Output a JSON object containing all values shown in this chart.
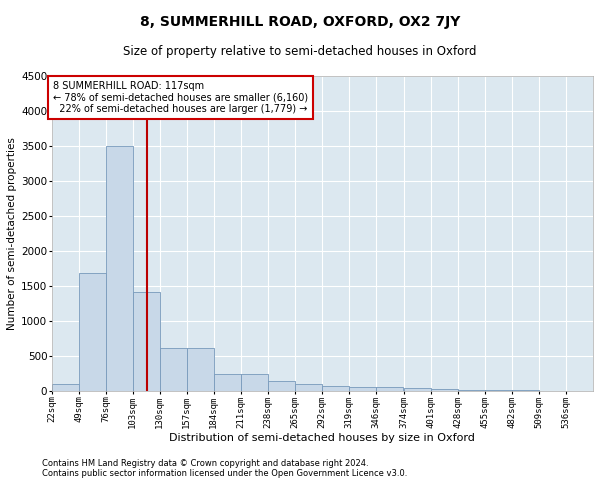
{
  "title": "8, SUMMERHILL ROAD, OXFORD, OX2 7JY",
  "subtitle": "Size of property relative to semi-detached houses in Oxford",
  "xlabel": "Distribution of semi-detached houses by size in Oxford",
  "ylabel": "Number of semi-detached properties",
  "footnote1": "Contains HM Land Registry data © Crown copyright and database right 2024.",
  "footnote2": "Contains public sector information licensed under the Open Government Licence v3.0.",
  "property_label": "8 SUMMERHILL ROAD: 117sqm",
  "pct_smaller": 78,
  "count_smaller": 6160,
  "pct_larger": 22,
  "count_larger": 1779,
  "bin_edges": [
    22,
    49,
    76,
    103,
    130,
    157,
    184,
    211,
    238,
    265,
    292,
    319,
    346,
    374,
    401,
    428,
    455,
    482,
    509,
    536,
    563
  ],
  "bar_heights": [
    100,
    1680,
    3500,
    1420,
    610,
    610,
    250,
    250,
    145,
    100,
    70,
    60,
    55,
    45,
    30,
    20,
    15,
    10,
    8,
    5
  ],
  "bar_color": "#c8d8e8",
  "bar_edge_color": "#7799bb",
  "red_line_x": 117,
  "ylim": [
    0,
    4500
  ],
  "yticks": [
    0,
    500,
    1000,
    1500,
    2000,
    2500,
    3000,
    3500,
    4000,
    4500
  ],
  "annotation_box_color": "#cc0000",
  "bg_color": "#dce8f0",
  "title_fontsize": 10,
  "subtitle_fontsize": 8.5,
  "ylabel_fontsize": 7.5,
  "xlabel_fontsize": 8,
  "ytick_fontsize": 7.5,
  "xtick_fontsize": 6.5,
  "footnote_fontsize": 6
}
